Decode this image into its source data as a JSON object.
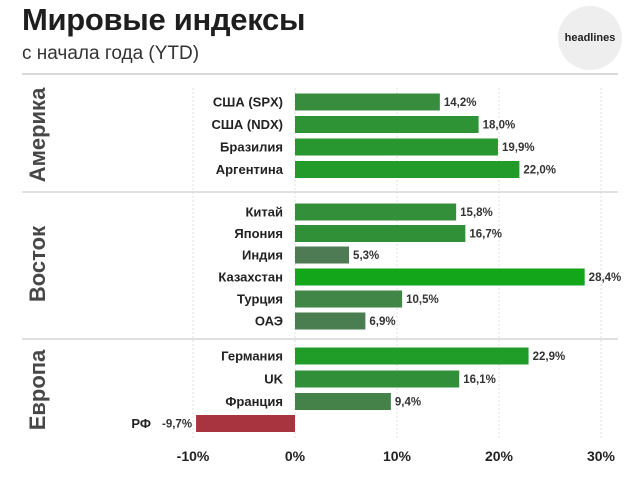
{
  "brand": {
    "name": "headlines"
  },
  "chart_data": {
    "type": "bar",
    "orientation": "horizontal",
    "title": "Мировые индексы",
    "subtitle": "с начала года (YTD)",
    "xlim": [
      -10,
      30
    ],
    "xticks": [
      "-10%",
      "0%",
      "10%",
      "20%",
      "30%"
    ],
    "grid": true,
    "groups": [
      {
        "name": "Америка",
        "items": [
          {
            "category": "США (SPX)",
            "value": 14.2,
            "label": "14,2%"
          },
          {
            "category": "США (NDX)",
            "value": 18.0,
            "label": "18,0%"
          },
          {
            "category": "Бразилия",
            "value": 19.9,
            "label": "19,9%"
          },
          {
            "category": "Аргентина",
            "value": 22.0,
            "label": "22,0%"
          }
        ]
      },
      {
        "name": "Восток",
        "items": [
          {
            "category": "Китай",
            "value": 15.8,
            "label": "15,8%"
          },
          {
            "category": "Япония",
            "value": 16.7,
            "label": "16,7%"
          },
          {
            "category": "Индия",
            "value": 5.3,
            "label": "5,3%"
          },
          {
            "category": "Казахстан",
            "value": 28.4,
            "label": "28,4%"
          },
          {
            "category": "Турция",
            "value": 10.5,
            "label": "10,5%"
          },
          {
            "category": "ОАЭ",
            "value": 6.9,
            "label": "6,9%"
          }
        ]
      },
      {
        "name": "Европа",
        "items": [
          {
            "category": "Германия",
            "value": 22.9,
            "label": "22,9%"
          },
          {
            "category": "UK",
            "value": 16.1,
            "label": "16,1%"
          },
          {
            "category": "Франция",
            "value": 9.4,
            "label": "9,4%"
          },
          {
            "category": "РФ",
            "value": -9.7,
            "label": "-9,7%"
          }
        ]
      }
    ],
    "colors": {
      "positive_high": "#13a61b",
      "positive_low": "#4f7a55",
      "negative": "#a8343f"
    }
  }
}
